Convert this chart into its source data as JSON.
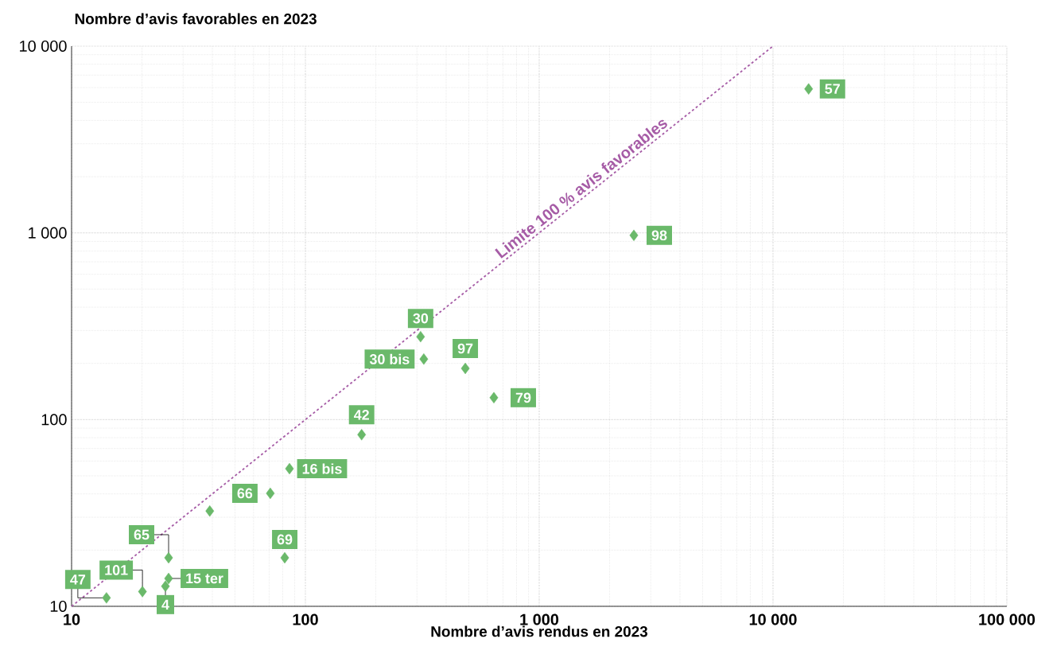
{
  "chart_data": {
    "type": "scatter",
    "ylabel": "Nombre d’avis favorables en 2023",
    "xlabel": "Nombre d’avis rendus en 2023",
    "log": "xy",
    "grid": true,
    "xlim": [
      10,
      100000
    ],
    "ylim": [
      10,
      10000
    ],
    "xticks": [
      10,
      100,
      {
        "value": 1000,
        "label": "1 000"
      },
      {
        "value": 10000,
        "label": "10 000"
      },
      {
        "value": 100000,
        "label": "100 000"
      }
    ],
    "yticks": [
      10,
      100,
      {
        "value": 1000,
        "label": "1 000"
      },
      {
        "value": 10000,
        "label": "10 000"
      }
    ],
    "series": [
      {
        "name": "Limite 100 % avis favorables",
        "type": "line",
        "line_style": "dashed",
        "marker": "none",
        "color": "#a65ca6",
        "x": [
          10,
          10000
        ],
        "values": [
          10,
          10000
        ]
      },
      {
        "marker": "diamond",
        "color": "#6ab96a",
        "x": [
          14200,
          2540,
          311,
          321,
          483,
          640,
          174,
          85.5,
          70.8,
          39,
          81.6,
          26,
          26,
          25.2,
          20.1,
          14.1
        ],
        "values": [
          5900,
          970,
          278,
          211,
          188,
          131,
          83,
          54.6,
          40.3,
          32.4,
          18.2,
          18.2,
          14.1,
          12.8,
          12,
          11.1
        ]
      }
    ],
    "annotations": [
      {
        "text": "57",
        "x": 14200,
        "y": 5900
      },
      {
        "text": "98",
        "x": 2540,
        "y": 970
      },
      {
        "text": "30",
        "x": 311,
        "y": 278
      },
      {
        "text": "30 bis",
        "x": 321,
        "y": 211
      },
      {
        "text": "97",
        "x": 483,
        "y": 188
      },
      {
        "text": "79",
        "x": 640,
        "y": 131
      },
      {
        "text": "42",
        "x": 174,
        "y": 83
      },
      {
        "text": "16 bis",
        "x": 85.5,
        "y": 54.6
      },
      {
        "text": "66",
        "x": 70.8,
        "y": 40.3
      },
      {
        "text": "69",
        "x": 81.6,
        "y": 18.2
      },
      {
        "text": "65",
        "x": 26,
        "y": 18.2
      },
      {
        "text": "15 ter",
        "x": 26,
        "y": 14.1
      },
      {
        "text": "4",
        "x": 25.2,
        "y": 12.8
      },
      {
        "text": "101",
        "x": 20.1,
        "y": 12
      },
      {
        "text": "47",
        "x": 14.1,
        "y": 11.1
      }
    ]
  }
}
